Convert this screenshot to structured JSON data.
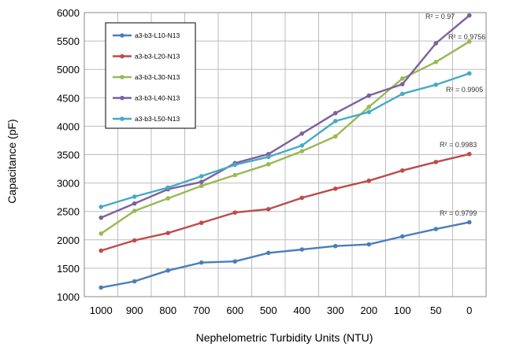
{
  "chart_data": {
    "type": "line",
    "title": "",
    "xlabel": "Nephelometric Turbidity Units (NTU)",
    "ylabel": "Capacitance (pF)",
    "categories": [
      "1000",
      "900",
      "800",
      "700",
      "600",
      "500",
      "400",
      "300",
      "200",
      "100",
      "50",
      "0"
    ],
    "ylim": [
      1000,
      6000
    ],
    "yticks": [
      "1000",
      "1500",
      "2000",
      "2500",
      "3000",
      "3500",
      "4000",
      "4500",
      "5000",
      "5500",
      "6000"
    ],
    "grid": true,
    "legend_position": "top-left",
    "series": [
      {
        "name": "a3-b3-L10-N13",
        "color": "#4a7ebb",
        "r2": "R² = 0.9799",
        "values": [
          1160,
          1270,
          1460,
          1600,
          1620,
          1770,
          1830,
          1890,
          1920,
          2060,
          2190,
          2310
        ]
      },
      {
        "name": "a3-b3-L20-N13",
        "color": "#be4b48",
        "r2": "R² = 0.9983",
        "values": [
          1810,
          1990,
          2120,
          2300,
          2480,
          2540,
          2740,
          2900,
          3040,
          3220,
          3370,
          3510
        ]
      },
      {
        "name": "a3-b3-L30-N13",
        "color": "#98b954",
        "r2": "R² = 0.9756",
        "values": [
          2110,
          2510,
          2730,
          2950,
          3140,
          3330,
          3560,
          3820,
          4340,
          4840,
          5130,
          5490
        ]
      },
      {
        "name": "a3-b3-L40-N13",
        "color": "#7d60a0",
        "r2": "R² = 0.97",
        "values": [
          2390,
          2640,
          2890,
          3020,
          3350,
          3510,
          3870,
          4230,
          4540,
          4740,
          5460,
          5950
        ]
      },
      {
        "name": "a3-b3-L50-N13",
        "color": "#46aac5",
        "r2": "R² = 0.9905",
        "values": [
          2580,
          2760,
          2920,
          3120,
          3320,
          3460,
          3660,
          4090,
          4250,
          4570,
          4730,
          4930
        ]
      }
    ]
  }
}
